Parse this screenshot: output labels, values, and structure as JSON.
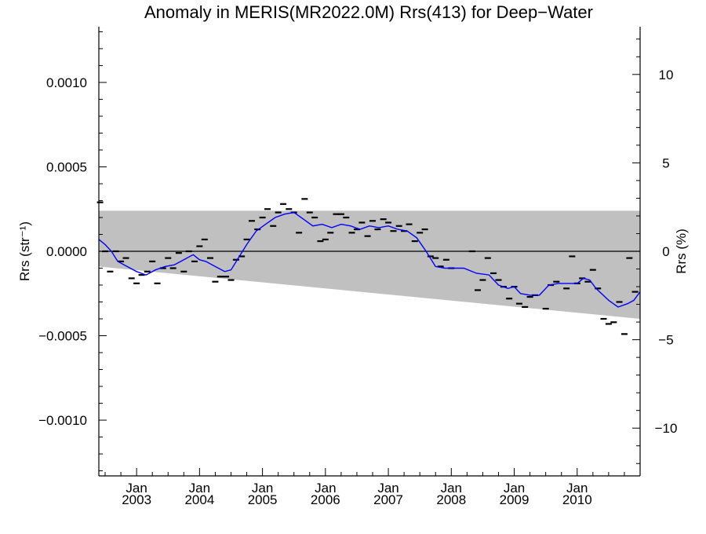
{
  "chart_data": {
    "type": "scatter",
    "title": "Anomaly in MERIS(MR2022.0M) Rrs(413) for Deep−Water",
    "ylabel": "Rrs (str⁻¹)",
    "y2label": "Rrs (%)",
    "xlim": [
      2002.4,
      2011.0
    ],
    "ylim": [
      -0.00133,
      0.00133
    ],
    "y2lim": [
      -12.7,
      12.7
    ],
    "grid": false,
    "zero_line": true,
    "x_tick_labels": [
      {
        "x": 2003.0,
        "month": "Jan",
        "year": "2003"
      },
      {
        "x": 2004.0,
        "month": "Jan",
        "year": "2004"
      },
      {
        "x": 2005.0,
        "month": "Jan",
        "year": "2005"
      },
      {
        "x": 2006.0,
        "month": "Jan",
        "year": "2006"
      },
      {
        "x": 2007.0,
        "month": "Jan",
        "year": "2007"
      },
      {
        "x": 2008.0,
        "month": "Jan",
        "year": "2008"
      },
      {
        "x": 2009.0,
        "month": "Jan",
        "year": "2009"
      },
      {
        "x": 2010.0,
        "month": "Jan",
        "year": "2010"
      }
    ],
    "y_ticks": [
      {
        "v": 0.001,
        "label": "0.0010"
      },
      {
        "v": 0.0005,
        "label": "0.0005"
      },
      {
        "v": 0.0,
        "label": "0.0000"
      },
      {
        "v": -0.0005,
        "label": "−0.0005"
      },
      {
        "v": -0.001,
        "label": "−0.0010"
      }
    ],
    "y2_ticks": [
      {
        "v": 10,
        "label": "10"
      },
      {
        "v": 5,
        "label": "5"
      },
      {
        "v": 0,
        "label": "0"
      },
      {
        "v": -5,
        "label": "−5"
      },
      {
        "v": -10,
        "label": "−10"
      }
    ],
    "band": {
      "x": [
        2002.4,
        2011.0
      ],
      "upper": [
        0.00024,
        0.00024
      ],
      "lower": [
        -9e-05,
        -0.0004
      ],
      "color": "#c0c0c0"
    },
    "monthly_anomalies": {
      "x": [
        2002.42,
        2002.5,
        2002.58,
        2002.67,
        2002.75,
        2002.83,
        2002.92,
        2003.0,
        2003.08,
        2003.17,
        2003.25,
        2003.33,
        2003.42,
        2003.5,
        2003.58,
        2003.67,
        2003.75,
        2003.83,
        2003.92,
        2004.0,
        2004.08,
        2004.17,
        2004.25,
        2004.33,
        2004.42,
        2004.5,
        2004.58,
        2004.67,
        2004.75,
        2004.83,
        2004.92,
        2005.0,
        2005.08,
        2005.17,
        2005.25,
        2005.33,
        2005.42,
        2005.5,
        2005.58,
        2005.67,
        2005.75,
        2005.83,
        2005.92,
        2006.0,
        2006.08,
        2006.17,
        2006.25,
        2006.33,
        2006.42,
        2006.5,
        2006.58,
        2006.67,
        2006.75,
        2006.83,
        2006.92,
        2007.0,
        2007.08,
        2007.17,
        2007.25,
        2007.33,
        2007.42,
        2007.5,
        2007.58,
        2007.67,
        2007.75,
        2007.83,
        2007.92,
        2008.0,
        2008.33,
        2008.42,
        2008.5,
        2008.58,
        2008.67,
        2008.75,
        2008.83,
        2008.92,
        2009.0,
        2009.08,
        2009.17,
        2009.25,
        2009.33,
        2009.5,
        2009.58,
        2009.67,
        2009.83,
        2009.92,
        2010.0,
        2010.08,
        2010.17,
        2010.25,
        2010.33,
        2010.42,
        2010.5,
        2010.58,
        2010.67,
        2010.75,
        2010.83,
        2010.92
      ],
      "y": [
        0.00029,
        0.0,
        -0.00012,
        0.0,
        -6e-05,
        -4e-05,
        -0.00016,
        -0.00019,
        -0.00014,
        -0.00012,
        -6e-05,
        -0.00019,
        -0.0001,
        -4e-05,
        -0.0001,
        -1e-05,
        -0.00012,
        0.0,
        -6e-05,
        3e-05,
        7e-05,
        -4e-05,
        -0.00018,
        -0.00015,
        -0.00015,
        -0.00017,
        -5e-05,
        -3e-05,
        7e-05,
        0.00018,
        0.00013,
        0.0002,
        0.00025,
        0.00015,
        0.00023,
        0.00028,
        0.00025,
        0.00023,
        0.00011,
        0.00031,
        0.00023,
        0.0002,
        6e-05,
        7e-05,
        0.00011,
        0.00022,
        0.00022,
        0.0002,
        0.00011,
        0.00013,
        0.00017,
        9e-05,
        0.00018,
        0.00013,
        0.00019,
        0.00017,
        0.00012,
        0.00015,
        0.00012,
        0.00016,
        6e-05,
        0.00011,
        0.00013,
        -3e-05,
        -4e-05,
        -9e-05,
        -5e-05,
        -0.0001,
        0.0,
        -0.00023,
        -0.00017,
        -4e-05,
        -0.00013,
        -0.00017,
        -0.00021,
        -0.00028,
        -0.00021,
        -0.00031,
        -0.00033,
        -0.00027,
        -0.00026,
        -0.00034,
        -0.0002,
        -0.00018,
        -0.00022,
        -3e-05,
        -0.00019,
        -0.00016,
        -0.00018,
        -0.00011,
        -0.00022,
        -0.0004,
        -0.00043,
        -0.00042,
        -0.0003,
        -0.00049,
        -4e-05,
        -0.00024
      ]
    },
    "running_mean": {
      "color": "#0000ff",
      "x": [
        2002.4,
        2002.5,
        2002.6,
        2002.7,
        2002.85,
        2003.0,
        2003.15,
        2003.3,
        2003.45,
        2003.6,
        2003.75,
        2003.9,
        2004.0,
        2004.1,
        2004.25,
        2004.4,
        2004.5,
        2004.6,
        2004.75,
        2004.9,
        2005.05,
        2005.2,
        2005.35,
        2005.5,
        2005.65,
        2005.8,
        2005.95,
        2006.1,
        2006.25,
        2006.4,
        2006.55,
        2006.7,
        2006.85,
        2007.0,
        2007.15,
        2007.3,
        2007.45,
        2007.6,
        2007.75,
        2007.9,
        2008.0,
        2008.2,
        2008.4,
        2008.6,
        2008.75,
        2008.9,
        2009.0,
        2009.1,
        2009.25,
        2009.4,
        2009.55,
        2009.7,
        2009.85,
        2010.0,
        2010.1,
        2010.2,
        2010.3,
        2010.5,
        2010.65,
        2010.8,
        2010.9,
        2011.0
      ],
      "y": [
        7e-05,
        4e-05,
        0.0,
        -6e-05,
        -9e-05,
        -0.00012,
        -0.00014,
        -0.00011,
        -9e-05,
        -8e-05,
        -5e-05,
        -2e-05,
        -5e-05,
        -6e-05,
        -9e-05,
        -0.00012,
        -0.00011,
        -5e-05,
        4e-05,
        0.00012,
        0.00016,
        0.0002,
        0.00022,
        0.00023,
        0.00019,
        0.00015,
        0.00016,
        0.00014,
        0.00016,
        0.00015,
        0.00013,
        0.00015,
        0.00014,
        0.00015,
        0.00013,
        0.00012,
        8e-05,
        0.0,
        -9e-05,
        -0.0001,
        -0.0001,
        -0.0001,
        -0.00013,
        -0.00014,
        -0.0002,
        -0.00022,
        -0.00021,
        -0.00025,
        -0.00026,
        -0.00026,
        -0.0002,
        -0.00019,
        -0.00019,
        -0.00019,
        -0.00016,
        -0.00017,
        -0.00022,
        -0.00029,
        -0.00033,
        -0.00031,
        -0.00029,
        -0.00024
      ]
    }
  }
}
